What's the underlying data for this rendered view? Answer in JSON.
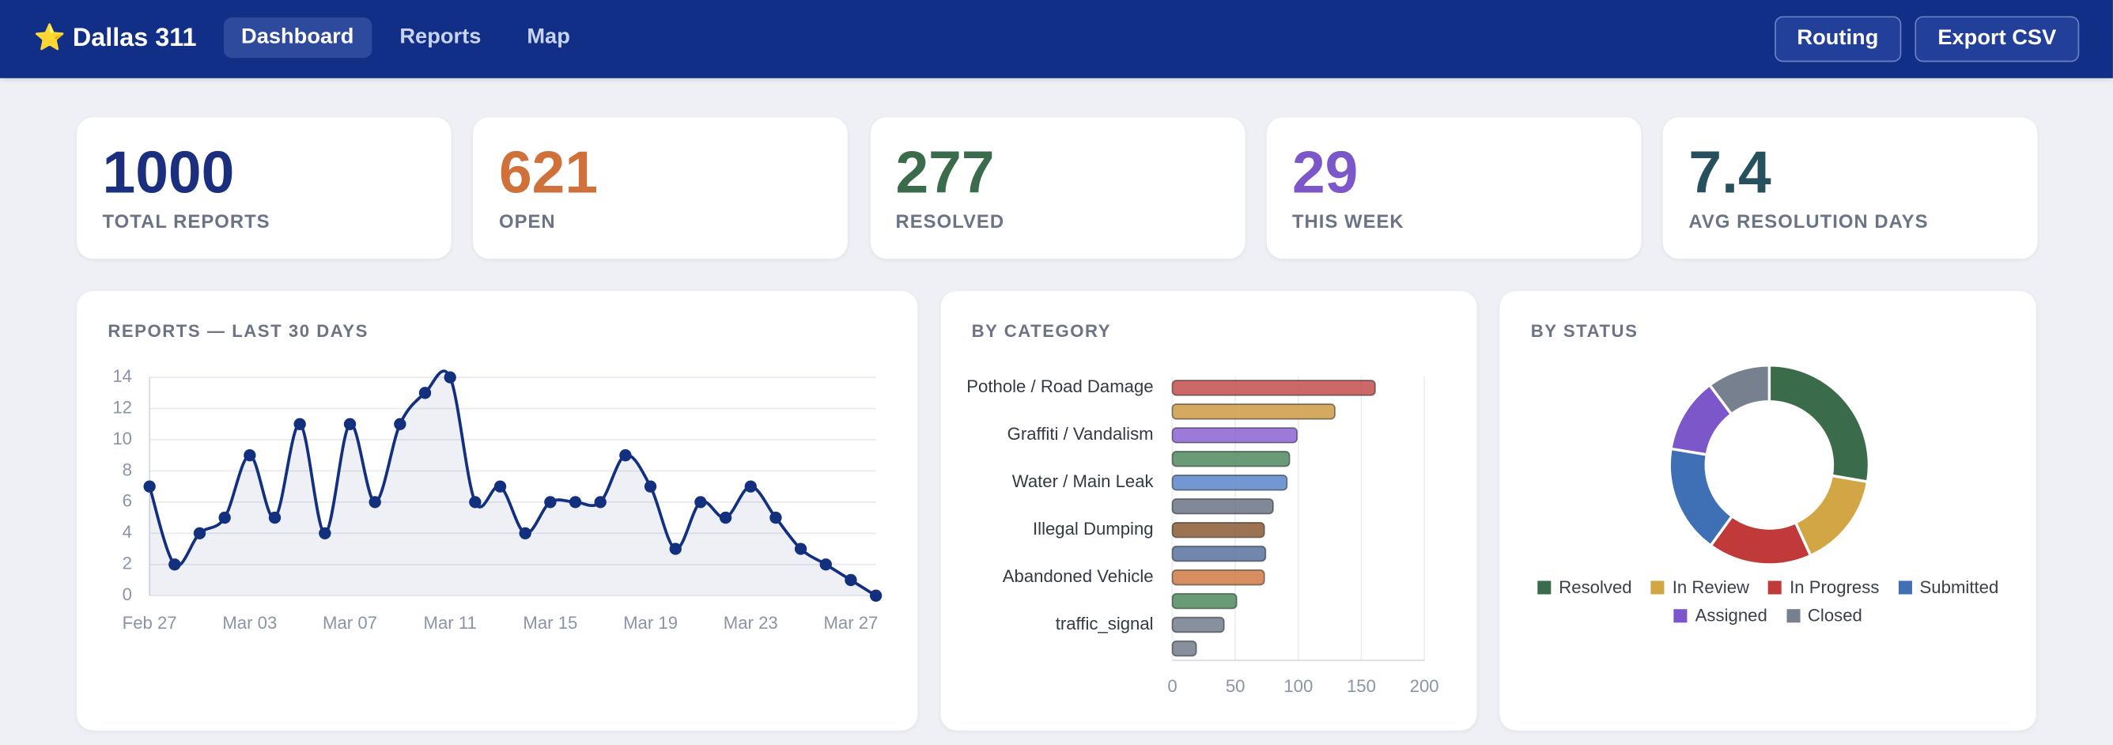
{
  "header": {
    "brand": "Dallas 311",
    "nav": [
      "Dashboard",
      "Reports",
      "Map"
    ],
    "actions": [
      "Routing",
      "Export CSV"
    ]
  },
  "kpis": [
    {
      "value": 1000,
      "label": "TOTAL REPORTS",
      "color": "#1b2f7e"
    },
    {
      "value": 621,
      "label": "OPEN",
      "color": "#d0703a"
    },
    {
      "value": 277,
      "label": "RESOLVED",
      "color": "#3a6b4a"
    },
    {
      "value": 29,
      "label": "THIS WEEK",
      "color": "#7b57c9"
    },
    {
      "value": 7.4,
      "label": "AVG RESOLUTION DAYS",
      "color": "#27505e"
    }
  ],
  "chart_data": [
    {
      "type": "line",
      "title": "REPORTS — LAST 30 DAYS",
      "color": "#13307f",
      "categories": [
        "Feb 27",
        null,
        null,
        null,
        "Mar 03",
        null,
        null,
        null,
        "Mar 07",
        null,
        null,
        null,
        "Mar 11",
        null,
        null,
        null,
        "Mar 15",
        null,
        null,
        null,
        "Mar 19",
        null,
        null,
        null,
        "Mar 23",
        null,
        null,
        null,
        "Mar 27",
        null
      ],
      "values": [
        7,
        2,
        4,
        5,
        9,
        5,
        11,
        4,
        11,
        6,
        11,
        13,
        14,
        6,
        7,
        4,
        6,
        6,
        6,
        9,
        7,
        3,
        6,
        5,
        7,
        5,
        3,
        2,
        1,
        0
      ],
      "ylim": [
        0,
        14
      ],
      "yticks": [
        0,
        2,
        4,
        6,
        8,
        10,
        12,
        14
      ],
      "grid": true
    },
    {
      "type": "barh",
      "title": "BY CATEGORY",
      "categories": [
        "Pothole / Road Damage",
        null,
        "Graffiti / Vandalism",
        null,
        "Water / Main Leak",
        null,
        "Illegal Dumping",
        null,
        "Abandoned Vehicle",
        null,
        "traffic_signal",
        null
      ],
      "values": [
        161,
        129,
        99,
        93,
        91,
        80,
        73,
        74,
        73,
        51,
        41,
        19
      ],
      "colors": [
        "#c44e4e",
        "#cf9a45",
        "#8a63d2",
        "#4f8a5e",
        "#5b86c9",
        "#6b7385",
        "#8a5a35",
        "#58739e",
        "#d07a45",
        "#4f8a5e",
        "#737b8c",
        "#737b8c"
      ],
      "xlim": [
        0,
        200
      ],
      "xticks": [
        0,
        50,
        100,
        150,
        200
      ],
      "grid": true
    },
    {
      "type": "doughnut",
      "title": "BY STATUS",
      "categories": [
        "Resolved",
        "In Review",
        "In Progress",
        "Submitted",
        "Assigned",
        "Closed"
      ],
      "values": [
        277,
        155,
        168,
        176,
        122,
        102
      ],
      "colors": [
        "#3a6b4a",
        "#d3a645",
        "#c03a3a",
        "#3f6fb5",
        "#7b57c9",
        "#76808f"
      ]
    }
  ]
}
